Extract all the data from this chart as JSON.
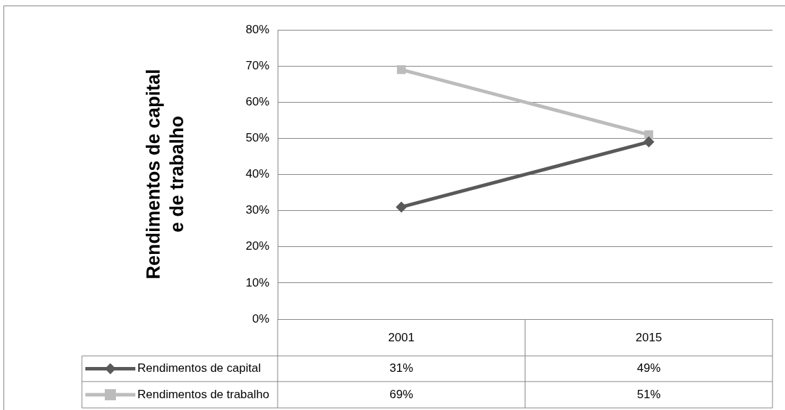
{
  "chart_data": {
    "type": "line",
    "ylabel": "Rendimentos de capital\ne de trabalho",
    "categories": [
      "2001",
      "2015"
    ],
    "series": [
      {
        "name": "Rendimentos de capital",
        "color": "#595959",
        "marker": "diamond",
        "values": [
          31,
          49
        ],
        "value_labels": [
          "31%",
          "49%"
        ]
      },
      {
        "name": "Rendimentos de trabalho",
        "color": "#bcbcbc",
        "marker": "square",
        "values": [
          69,
          51
        ],
        "value_labels": [
          "69%",
          "51%"
        ]
      }
    ],
    "ylim": [
      0,
      80
    ],
    "yticks": [
      {
        "value": 0,
        "label": "0%"
      },
      {
        "value": 10,
        "label": "10%"
      },
      {
        "value": 20,
        "label": "20%"
      },
      {
        "value": 30,
        "label": "30%"
      },
      {
        "value": 40,
        "label": "40%"
      },
      {
        "value": 50,
        "label": "50%"
      },
      {
        "value": 60,
        "label": "60%"
      },
      {
        "value": 70,
        "label": "70%"
      },
      {
        "value": 80,
        "label": "80%"
      }
    ],
    "grid": "y",
    "legend": "bottom"
  }
}
